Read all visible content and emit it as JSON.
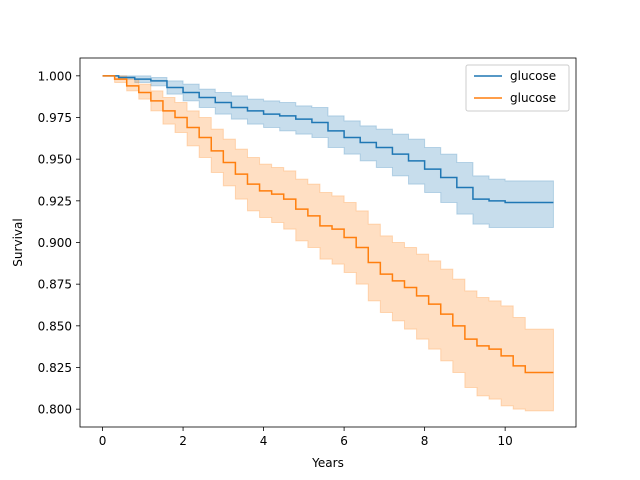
{
  "chart_data": {
    "type": "line",
    "subtype": "kaplan-meier-step-with-confidence-band",
    "title": "",
    "xlabel": "Years",
    "ylabel": "Survival",
    "xlim": [
      -0.56,
      11.76
    ],
    "ylim": [
      0.7893,
      1.0107
    ],
    "xticks": [
      0,
      2,
      4,
      6,
      8,
      10
    ],
    "xtick_labels": [
      "0",
      "2",
      "4",
      "6",
      "8",
      "10"
    ],
    "yticks": [
      0.8,
      0.825,
      0.85,
      0.875,
      0.9,
      0.925,
      0.95,
      0.975,
      1.0
    ],
    "ytick_labels": [
      "0.800",
      "0.825",
      "0.850",
      "0.875",
      "0.900",
      "0.925",
      "0.950",
      "0.975",
      "1.000"
    ],
    "grid": false,
    "legend_position": "top-right",
    "colors": {
      "series1": "#1f77b4",
      "series2": "#ff7f0e"
    },
    "series": [
      {
        "name": "glucose",
        "color": "#1f77b4",
        "points": [
          [
            0,
            1.0
          ],
          [
            0.4,
            0.999
          ],
          [
            0.8,
            0.998
          ],
          [
            1.2,
            0.997
          ],
          [
            1.6,
            0.993
          ],
          [
            2.0,
            0.99
          ],
          [
            2.4,
            0.987
          ],
          [
            2.8,
            0.984
          ],
          [
            3.2,
            0.981
          ],
          [
            3.6,
            0.979
          ],
          [
            4.0,
            0.977
          ],
          [
            4.4,
            0.976
          ],
          [
            4.8,
            0.974
          ],
          [
            5.2,
            0.972
          ],
          [
            5.6,
            0.967
          ],
          [
            6.0,
            0.963
          ],
          [
            6.4,
            0.96
          ],
          [
            6.8,
            0.957
          ],
          [
            7.2,
            0.953
          ],
          [
            7.6,
            0.949
          ],
          [
            8.0,
            0.944
          ],
          [
            8.4,
            0.939
          ],
          [
            8.8,
            0.933
          ],
          [
            9.2,
            0.926
          ],
          [
            9.6,
            0.925
          ],
          [
            10.0,
            0.924
          ],
          [
            11.2,
            0.924
          ]
        ],
        "ci_lower": [
          [
            0,
            1.0
          ],
          [
            0.4,
            0.998
          ],
          [
            0.8,
            0.996
          ],
          [
            1.2,
            0.994
          ],
          [
            1.6,
            0.989
          ],
          [
            2.0,
            0.985
          ],
          [
            2.4,
            0.981
          ],
          [
            2.8,
            0.977
          ],
          [
            3.2,
            0.974
          ],
          [
            3.6,
            0.971
          ],
          [
            4.0,
            0.969
          ],
          [
            4.4,
            0.967
          ],
          [
            4.8,
            0.965
          ],
          [
            5.2,
            0.963
          ],
          [
            5.6,
            0.957
          ],
          [
            6.0,
            0.953
          ],
          [
            6.4,
            0.949
          ],
          [
            6.8,
            0.945
          ],
          [
            7.2,
            0.94
          ],
          [
            7.6,
            0.935
          ],
          [
            8.0,
            0.93
          ],
          [
            8.4,
            0.924
          ],
          [
            8.8,
            0.917
          ],
          [
            9.2,
            0.911
          ],
          [
            9.6,
            0.909
          ],
          [
            10.0,
            0.909
          ],
          [
            11.2,
            0.909
          ]
        ],
        "ci_upper": [
          [
            0,
            1.0
          ],
          [
            0.4,
            1.0
          ],
          [
            0.8,
            1.0
          ],
          [
            1.2,
            0.999
          ],
          [
            1.6,
            0.997
          ],
          [
            2.0,
            0.995
          ],
          [
            2.4,
            0.992
          ],
          [
            2.8,
            0.99
          ],
          [
            3.2,
            0.988
          ],
          [
            3.6,
            0.986
          ],
          [
            4.0,
            0.985
          ],
          [
            4.4,
            0.984
          ],
          [
            4.8,
            0.982
          ],
          [
            5.2,
            0.981
          ],
          [
            5.6,
            0.976
          ],
          [
            6.0,
            0.973
          ],
          [
            6.4,
            0.97
          ],
          [
            6.8,
            0.968
          ],
          [
            7.2,
            0.965
          ],
          [
            7.6,
            0.962
          ],
          [
            8.0,
            0.957
          ],
          [
            8.4,
            0.953
          ],
          [
            8.8,
            0.948
          ],
          [
            9.2,
            0.94
          ],
          [
            9.6,
            0.938
          ],
          [
            10.0,
            0.937
          ],
          [
            11.2,
            0.937
          ]
        ]
      },
      {
        "name": "glucose",
        "color": "#ff7f0e",
        "points": [
          [
            0,
            1.0
          ],
          [
            0.3,
            0.998
          ],
          [
            0.6,
            0.994
          ],
          [
            0.9,
            0.99
          ],
          [
            1.2,
            0.985
          ],
          [
            1.5,
            0.979
          ],
          [
            1.8,
            0.975
          ],
          [
            2.1,
            0.969
          ],
          [
            2.4,
            0.963
          ],
          [
            2.7,
            0.955
          ],
          [
            3.0,
            0.948
          ],
          [
            3.3,
            0.941
          ],
          [
            3.6,
            0.935
          ],
          [
            3.9,
            0.931
          ],
          [
            4.2,
            0.929
          ],
          [
            4.5,
            0.926
          ],
          [
            4.8,
            0.92
          ],
          [
            5.1,
            0.916
          ],
          [
            5.4,
            0.91
          ],
          [
            5.7,
            0.908
          ],
          [
            6.0,
            0.903
          ],
          [
            6.3,
            0.897
          ],
          [
            6.6,
            0.888
          ],
          [
            6.9,
            0.881
          ],
          [
            7.2,
            0.877
          ],
          [
            7.5,
            0.873
          ],
          [
            7.8,
            0.868
          ],
          [
            8.1,
            0.863
          ],
          [
            8.4,
            0.857
          ],
          [
            8.7,
            0.85
          ],
          [
            9.0,
            0.842
          ],
          [
            9.3,
            0.838
          ],
          [
            9.6,
            0.836
          ],
          [
            9.9,
            0.832
          ],
          [
            10.2,
            0.826
          ],
          [
            10.5,
            0.822
          ],
          [
            11.2,
            0.822
          ]
        ],
        "ci_lower": [
          [
            0,
            1.0
          ],
          [
            0.3,
            0.996
          ],
          [
            0.6,
            0.991
          ],
          [
            0.9,
            0.986
          ],
          [
            1.2,
            0.979
          ],
          [
            1.5,
            0.971
          ],
          [
            1.8,
            0.966
          ],
          [
            2.1,
            0.958
          ],
          [
            2.4,
            0.951
          ],
          [
            2.7,
            0.942
          ],
          [
            3.0,
            0.934
          ],
          [
            3.3,
            0.926
          ],
          [
            3.6,
            0.919
          ],
          [
            3.9,
            0.915
          ],
          [
            4.2,
            0.912
          ],
          [
            4.5,
            0.908
          ],
          [
            4.8,
            0.901
          ],
          [
            5.1,
            0.897
          ],
          [
            5.4,
            0.89
          ],
          [
            5.7,
            0.887
          ],
          [
            6.0,
            0.882
          ],
          [
            6.3,
            0.875
          ],
          [
            6.6,
            0.865
          ],
          [
            6.9,
            0.858
          ],
          [
            7.2,
            0.853
          ],
          [
            7.5,
            0.848
          ],
          [
            7.8,
            0.842
          ],
          [
            8.1,
            0.836
          ],
          [
            8.4,
            0.829
          ],
          [
            8.7,
            0.822
          ],
          [
            9.0,
            0.813
          ],
          [
            9.3,
            0.808
          ],
          [
            9.6,
            0.806
          ],
          [
            9.9,
            0.802
          ],
          [
            10.2,
            0.8
          ],
          [
            10.5,
            0.799
          ],
          [
            11.2,
            0.799
          ]
        ],
        "ci_upper": [
          [
            0,
            1.0
          ],
          [
            0.3,
            1.0
          ],
          [
            0.6,
            0.998
          ],
          [
            0.9,
            0.995
          ],
          [
            1.2,
            0.991
          ],
          [
            1.5,
            0.987
          ],
          [
            1.8,
            0.984
          ],
          [
            2.1,
            0.979
          ],
          [
            2.4,
            0.975
          ],
          [
            2.7,
            0.968
          ],
          [
            3.0,
            0.962
          ],
          [
            3.3,
            0.956
          ],
          [
            3.6,
            0.951
          ],
          [
            3.9,
            0.947
          ],
          [
            4.2,
            0.945
          ],
          [
            4.5,
            0.943
          ],
          [
            4.8,
            0.938
          ],
          [
            5.1,
            0.935
          ],
          [
            5.4,
            0.93
          ],
          [
            5.7,
            0.928
          ],
          [
            6.0,
            0.924
          ],
          [
            6.3,
            0.919
          ],
          [
            6.6,
            0.911
          ],
          [
            6.9,
            0.904
          ],
          [
            7.2,
            0.9
          ],
          [
            7.5,
            0.897
          ],
          [
            7.8,
            0.893
          ],
          [
            8.1,
            0.889
          ],
          [
            8.4,
            0.884
          ],
          [
            8.7,
            0.878
          ],
          [
            9.0,
            0.871
          ],
          [
            9.3,
            0.867
          ],
          [
            9.6,
            0.865
          ],
          [
            9.9,
            0.862
          ],
          [
            10.2,
            0.855
          ],
          [
            10.5,
            0.848
          ],
          [
            11.2,
            0.84
          ]
        ]
      }
    ]
  }
}
